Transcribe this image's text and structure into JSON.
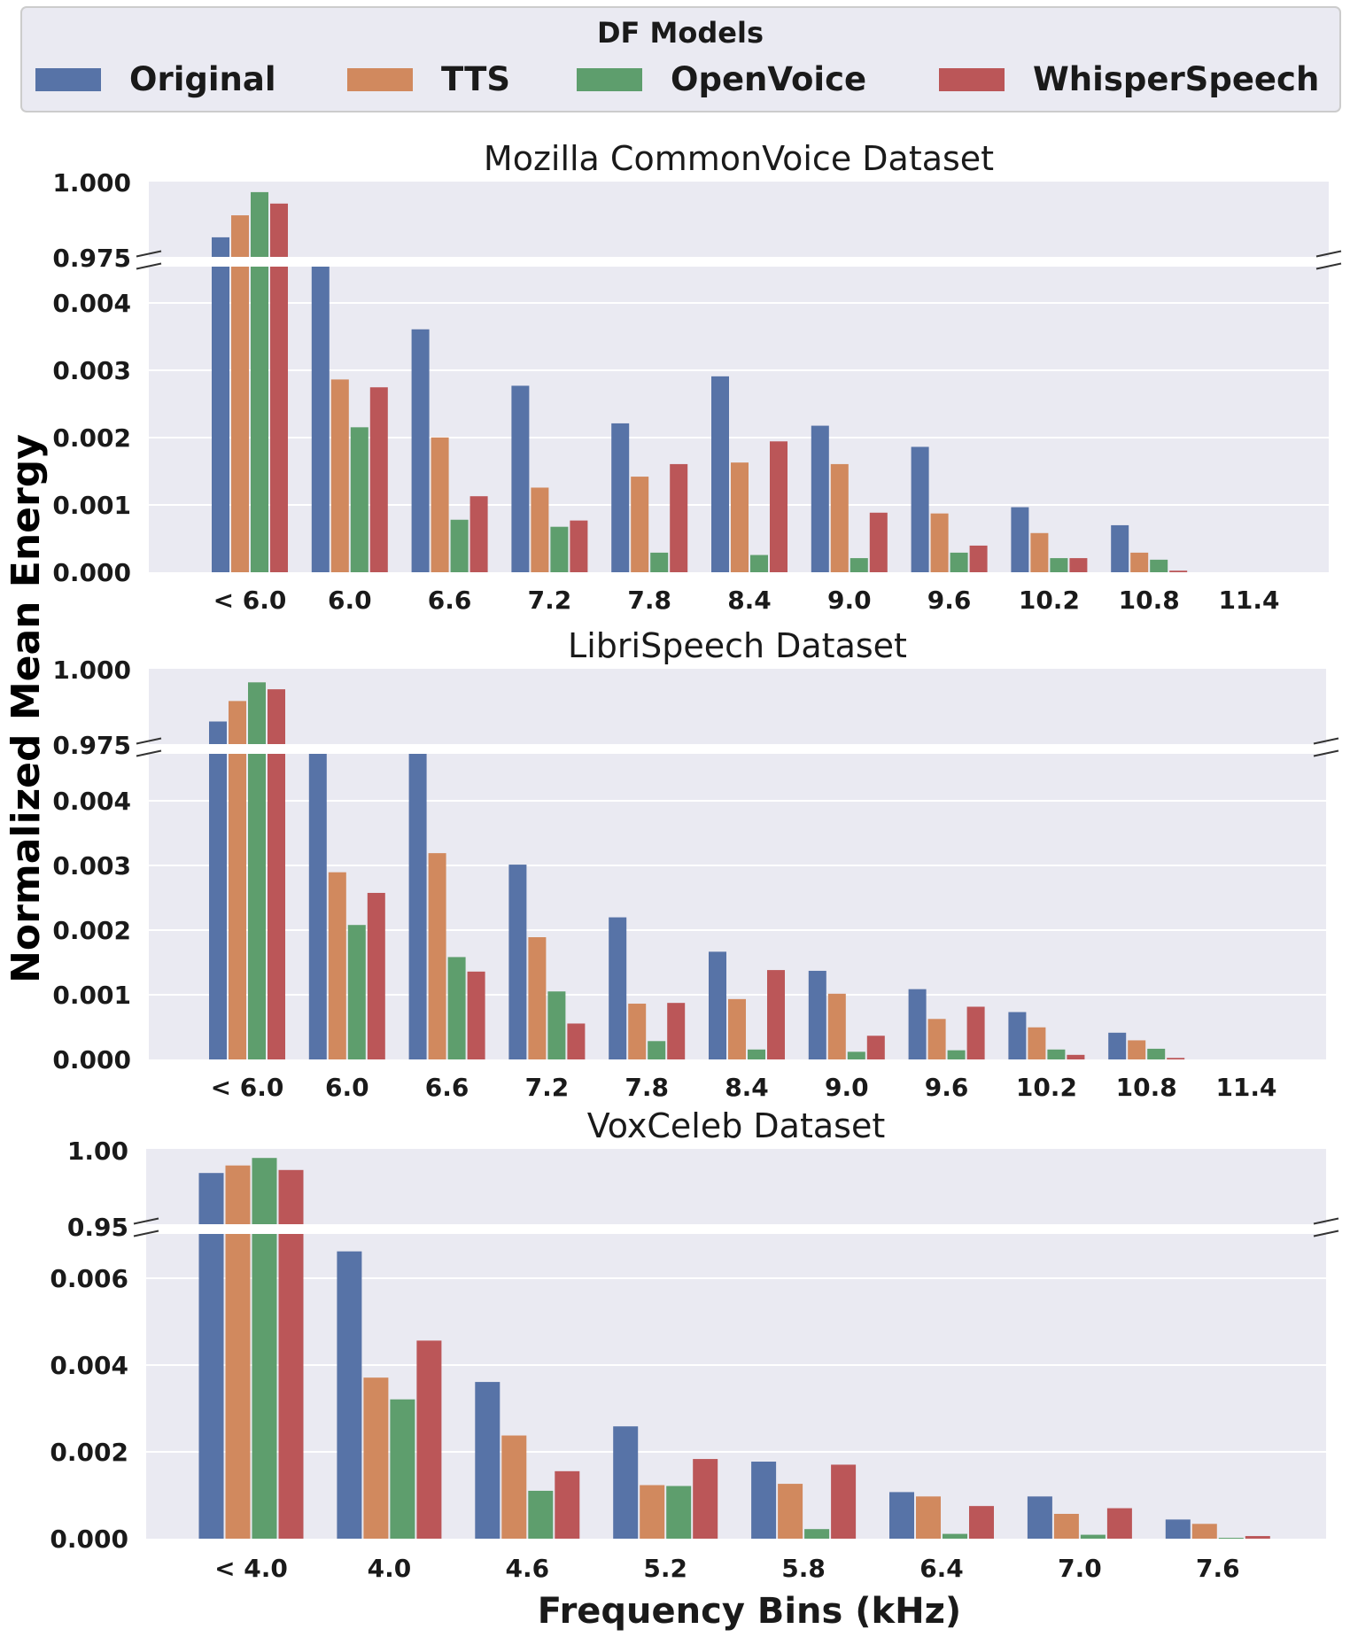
{
  "colors": {
    "panel_bg": "#eaeaf2",
    "grid": "#ffffff",
    "text": "#1a1a1a"
  },
  "legend": {
    "title": "DF Models",
    "location": "top",
    "entries": [
      {
        "label": "Original",
        "color": "#5773a7"
      },
      {
        "label": "TTS",
        "color": "#d1895e"
      },
      {
        "label": "OpenVoice",
        "color": "#5e9e6d"
      },
      {
        "label": "WhisperSpeech",
        "color": "#bb5658"
      }
    ]
  },
  "figure": {
    "ylabel": "Normalized Mean Energy",
    "xlabel": "Frequency Bins (kHz)"
  },
  "chart_data": [
    {
      "type": "bar",
      "title": "Mozilla CommonVoice Dataset",
      "broken_axis": true,
      "categories": [
        "< 6.0",
        "6.0",
        "6.6",
        "7.2",
        "7.8",
        "8.4",
        "9.0",
        "9.6",
        "10.2",
        "10.8",
        "11.4"
      ],
      "series": [
        {
          "name": "Original",
          "values": [
            0.9815,
            0.0044,
            0.0031,
            0.00238,
            0.0019,
            0.0025,
            0.00187,
            0.0016,
            0.00083,
            0.0006,
            0.0
          ]
        },
        {
          "name": "TTS",
          "values": [
            0.9888,
            0.00246,
            0.00172,
            0.00108,
            0.00122,
            0.0014,
            0.00138,
            0.00075,
            0.0005,
            0.00025,
            0.0
          ]
        },
        {
          "name": "OpenVoice",
          "values": [
            0.9965,
            0.00185,
            0.00067,
            0.00058,
            0.00025,
            0.00022,
            0.00018,
            0.00025,
            0.00018,
            0.00016,
            0.0
          ]
        },
        {
          "name": "WhisperSpeech",
          "values": [
            0.9927,
            0.00236,
            0.00097,
            0.00066,
            0.00138,
            0.00167,
            0.00076,
            0.00034,
            0.00018,
            2e-05,
            0.0
          ]
        }
      ],
      "upper_ylim": [
        0.975,
        1.0
      ],
      "upper_ticks": [
        "1.000",
        "0.975"
      ],
      "lower_ylim": [
        0.0,
        0.0039
      ],
      "lower_ticks": [
        "0.000",
        "0.001",
        "0.002",
        "0.003",
        "0.004"
      ],
      "grid": true
    },
    {
      "type": "bar",
      "title": "LibriSpeech Dataset",
      "broken_axis": true,
      "categories": [
        "< 6.0",
        "6.0",
        "6.6",
        "7.2",
        "7.8",
        "8.4",
        "9.0",
        "9.6",
        "10.2",
        "10.8",
        "11.4"
      ],
      "series": [
        {
          "name": "Original",
          "values": [
            0.9825,
            0.0046,
            0.0043,
            0.00255,
            0.00186,
            0.00141,
            0.00116,
            0.00092,
            0.00062,
            0.00035,
            0.0
          ]
        },
        {
          "name": "TTS",
          "values": [
            0.9893,
            0.00245,
            0.0027,
            0.0016,
            0.00073,
            0.00079,
            0.00086,
            0.00053,
            0.00042,
            0.00025,
            0.0
          ]
        },
        {
          "name": "OpenVoice",
          "values": [
            0.9955,
            0.00176,
            0.00134,
            0.00089,
            0.00024,
            0.00013,
            0.0001,
            0.00012,
            0.00013,
            0.00014,
            0.0
          ]
        },
        {
          "name": "WhisperSpeech",
          "values": [
            0.9932,
            0.00218,
            0.00115,
            0.00047,
            0.00074,
            0.00117,
            0.00031,
            0.00069,
            6e-05,
            2e-05,
            0.0
          ]
        }
      ],
      "upper_ylim": [
        0.975,
        1.0
      ],
      "upper_ticks": [
        "1.000",
        "0.975"
      ],
      "lower_ylim": [
        0.0,
        0.004
      ],
      "lower_ticks": [
        "0.000",
        "0.001",
        "0.002",
        "0.003",
        "0.004"
      ],
      "grid": true
    },
    {
      "type": "bar",
      "title": "VoxCeleb Dataset",
      "broken_axis": true,
      "categories": [
        "< 4.0",
        "4.0",
        "4.6",
        "5.2",
        "5.8",
        "6.4",
        "7.0",
        "7.6"
      ],
      "series": [
        {
          "name": "Original",
          "values": [
            0.984,
            0.0066,
            0.0036,
            0.00258,
            0.00177,
            0.00107,
            0.00097,
            0.00044
          ]
        },
        {
          "name": "TTS",
          "values": [
            0.989,
            0.0037,
            0.00237,
            0.00123,
            0.00126,
            0.00097,
            0.00057,
            0.00034
          ]
        },
        {
          "name": "OpenVoice",
          "values": [
            0.994,
            0.0032,
            0.0011,
            0.00121,
            0.00022,
            0.00011,
            9e-05,
            2e-05
          ]
        },
        {
          "name": "WhisperSpeech",
          "values": [
            0.986,
            0.00455,
            0.00155,
            0.00183,
            0.0017,
            0.00075,
            0.0007,
            6e-05
          ]
        }
      ],
      "upper_ylim": [
        0.95,
        1.0
      ],
      "upper_ticks": [
        "1.00",
        "0.95"
      ],
      "lower_ylim": [
        0.0,
        0.007
      ],
      "lower_ticks": [
        "0.000",
        "0.002",
        "0.004",
        "0.006"
      ],
      "grid": true
    }
  ]
}
